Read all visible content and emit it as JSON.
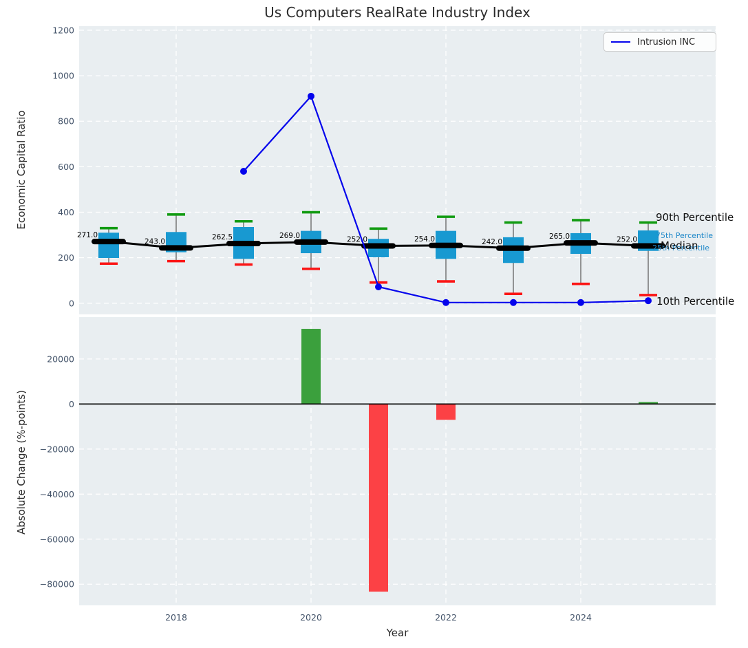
{
  "figure": {
    "title": "Us Computers RealRate Industry Index",
    "xlabel": "Year"
  },
  "legend": {
    "label": "Intrusion INC"
  },
  "colors": {
    "plot_bg": "#e9eef1",
    "grid": "#ffffff",
    "box_fill": "#1899d1",
    "whisker": "#6b6b6b",
    "cap_90": "#119b11",
    "cap_10": "#fb1515",
    "median": "#000000",
    "series_line": "#0404ec",
    "bar_positive": "#3ba03d",
    "bar_negative": "#fc4145",
    "tick_label": "#44546a",
    "zero_line": "#000000",
    "annotation_blue": "#1f88c9",
    "annotation_black": "#0f0f0f"
  },
  "chart_data": [
    {
      "type": "boxplot",
      "ylabel": "Economic Capital Ratio",
      "ylim": [
        -49,
        1218
      ],
      "yticks": [
        0,
        200,
        400,
        600,
        800,
        1000,
        1200
      ],
      "xticks": [
        2018,
        2020,
        2022,
        2024
      ],
      "grid": true,
      "legend_position": "upper right",
      "years": [
        2017,
        2018,
        2019,
        2020,
        2021,
        2022,
        2023,
        2024,
        2025
      ],
      "boxes": [
        {
          "year": 2017,
          "p10": 174,
          "p25": 199,
          "median": 271.0,
          "p75": 310,
          "p90": 330,
          "label": "271.0"
        },
        {
          "year": 2018,
          "p10": 185,
          "p25": 224,
          "median": 243.0,
          "p75": 313,
          "p90": 390,
          "label": "243.0"
        },
        {
          "year": 2019,
          "p10": 170,
          "p25": 195,
          "median": 262.5,
          "p75": 335,
          "p90": 360,
          "label": "262.5"
        },
        {
          "year": 2020,
          "p10": 151,
          "p25": 220,
          "median": 269.0,
          "p75": 318,
          "p90": 400,
          "label": "269.0"
        },
        {
          "year": 2021,
          "p10": 91,
          "p25": 202,
          "median": 252.0,
          "p75": 283,
          "p90": 328,
          "label": "252.0"
        },
        {
          "year": 2022,
          "p10": 96,
          "p25": 195,
          "median": 254.0,
          "p75": 318,
          "p90": 380,
          "label": "254.0"
        },
        {
          "year": 2023,
          "p10": 41,
          "p25": 177,
          "median": 242.0,
          "p75": 290,
          "p90": 355,
          "label": "242.0"
        },
        {
          "year": 2024,
          "p10": 85,
          "p25": 217,
          "median": 265.0,
          "p75": 308,
          "p90": 365,
          "label": "265.0"
        },
        {
          "year": 2025,
          "p10": 36,
          "p25": 230,
          "median": 252.0,
          "p75": 320,
          "p90": 355,
          "label": "252.0"
        }
      ],
      "series": [
        {
          "name": "Intrusion INC",
          "x": [
            2019,
            2020,
            2021,
            2022,
            2023,
            2024,
            2025
          ],
          "y": [
            580,
            910,
            72,
            3,
            3,
            3,
            11
          ]
        }
      ],
      "annotations": [
        {
          "text": "90th Percentile",
          "size": "large",
          "color": "black"
        },
        {
          "text": "75th Percentile",
          "size": "small",
          "color": "blue"
        },
        {
          "text": "Median",
          "size": "large",
          "color": "black"
        },
        {
          "text": "25th Percentile",
          "size": "small",
          "color": "blue"
        },
        {
          "text": "10th Percentile",
          "size": "large",
          "color": "black"
        }
      ]
    },
    {
      "type": "bar",
      "ylabel": "Absolute Change (%-points)",
      "xlabel": "Year",
      "ylim": [
        -89400,
        38600
      ],
      "yticks": [
        20000,
        0,
        -20000,
        -40000,
        -60000,
        -80000
      ],
      "xticks": [
        2018,
        2020,
        2022,
        2024
      ],
      "grid": true,
      "categories": [
        2017,
        2018,
        2019,
        2020,
        2021,
        2022,
        2023,
        2024,
        2025
      ],
      "values": [
        0,
        0,
        0,
        33400,
        -83300,
        -7000,
        0,
        0,
        900
      ]
    }
  ]
}
